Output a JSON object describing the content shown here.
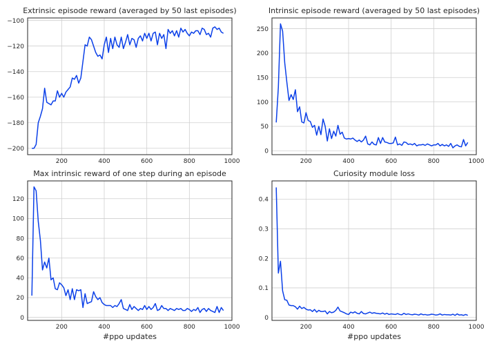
{
  "chart_data": [
    {
      "type": "line",
      "title": "Extrinsic episode reward (averaged by 50 last episodes)",
      "xlabel": "",
      "xlim": [
        40,
        1000
      ],
      "ylim": [
        -205,
        -98
      ],
      "xticks": [
        200,
        400,
        600,
        800,
        1000
      ],
      "yticks": [
        -200,
        -180,
        -160,
        -140,
        -120,
        -100
      ],
      "grid": true,
      "series": [
        {
          "x": [
            60,
            70,
            80,
            90,
            100,
            110,
            120,
            130,
            140,
            150,
            160,
            170,
            180,
            190,
            200,
            210,
            220,
            230,
            240,
            250,
            260,
            270,
            280,
            290,
            300,
            310,
            320,
            330,
            340,
            350,
            360,
            370,
            380,
            390,
            400,
            410,
            420,
            430,
            440,
            450,
            460,
            470,
            480,
            490,
            500,
            510,
            520,
            530,
            540,
            550,
            560,
            570,
            580,
            590,
            600,
            610,
            620,
            630,
            640,
            650,
            660,
            670,
            680,
            690,
            700,
            710,
            720,
            730,
            740,
            750,
            760,
            770,
            780,
            790,
            800,
            810,
            820,
            830,
            840,
            850,
            860,
            870,
            880,
            890,
            900,
            910,
            920,
            930,
            940,
            950,
            960
          ],
          "values": [
            -200,
            -200,
            -197,
            -180,
            -175,
            -169,
            -153,
            -164,
            -165,
            -166,
            -163,
            -163,
            -155,
            -160,
            -157,
            -160,
            -156,
            -154,
            -152,
            -145,
            -146,
            -143,
            -149,
            -145,
            -132,
            -119,
            -120,
            -113,
            -115,
            -120,
            -125,
            -128,
            -127,
            -130,
            -119,
            -113,
            -125,
            -114,
            -122,
            -113,
            -119,
            -121,
            -113,
            -122,
            -117,
            -111,
            -119,
            -114,
            -115,
            -121,
            -114,
            -112,
            -116,
            -110,
            -114,
            -110,
            -116,
            -110,
            -109,
            -119,
            -110,
            -114,
            -111,
            -122,
            -107,
            -110,
            -108,
            -112,
            -108,
            -113,
            -106,
            -109,
            -107,
            -110,
            -112,
            -109,
            -110,
            -108,
            -108,
            -111,
            -106,
            -107,
            -111,
            -110,
            -113,
            -106,
            -105,
            -107,
            -106,
            -109,
            -110
          ]
        }
      ]
    },
    {
      "type": "line",
      "title": "Intrinsic episode reward (averaged by 50 last episodes)",
      "xlabel": "",
      "xlim": [
        40,
        1000
      ],
      "ylim": [
        -8,
        272
      ],
      "xticks": [
        200,
        400,
        600,
        800,
        1000
      ],
      "yticks": [
        0,
        50,
        100,
        150,
        200,
        250
      ],
      "grid": true,
      "series": [
        {
          "x": [
            60,
            70,
            80,
            90,
            100,
            110,
            120,
            130,
            140,
            150,
            160,
            170,
            180,
            190,
            200,
            210,
            220,
            230,
            240,
            250,
            260,
            270,
            280,
            290,
            300,
            310,
            320,
            330,
            340,
            350,
            360,
            370,
            380,
            390,
            400,
            410,
            420,
            430,
            440,
            450,
            460,
            470,
            480,
            490,
            500,
            510,
            520,
            530,
            540,
            550,
            560,
            570,
            580,
            590,
            600,
            610,
            620,
            630,
            640,
            650,
            660,
            670,
            680,
            690,
            700,
            710,
            720,
            730,
            740,
            750,
            760,
            770,
            780,
            790,
            800,
            810,
            820,
            830,
            840,
            850,
            860,
            870,
            880,
            890,
            900,
            910,
            920,
            930,
            940,
            950,
            960
          ],
          "values": [
            58,
            130,
            260,
            245,
            180,
            140,
            103,
            115,
            105,
            125,
            80,
            90,
            59,
            57,
            78,
            62,
            60,
            48,
            52,
            32,
            50,
            33,
            65,
            50,
            20,
            45,
            25,
            40,
            30,
            52,
            34,
            38,
            26,
            24,
            25,
            24,
            26,
            22,
            19,
            22,
            18,
            22,
            30,
            14,
            12,
            18,
            13,
            12,
            27,
            15,
            27,
            18,
            17,
            15,
            15,
            16,
            28,
            12,
            14,
            11,
            18,
            17,
            13,
            14,
            12,
            15,
            10,
            12,
            12,
            13,
            11,
            14,
            12,
            10,
            12,
            12,
            15,
            10,
            13,
            10,
            12,
            9,
            15,
            6,
            10,
            12,
            9,
            8,
            23,
            10,
            17
          ]
        }
      ]
    },
    {
      "type": "line",
      "title": "Max intrinsic reward of one step during an episode",
      "xlabel": "#ppo updates",
      "xlim": [
        40,
        1000
      ],
      "ylim": [
        -3,
        138
      ],
      "xticks": [
        200,
        400,
        600,
        800,
        1000
      ],
      "yticks": [
        0,
        20,
        40,
        60,
        80,
        100,
        120
      ],
      "grid": true,
      "series": [
        {
          "x": [
            60,
            70,
            80,
            90,
            100,
            110,
            120,
            130,
            140,
            150,
            160,
            170,
            180,
            190,
            200,
            210,
            220,
            230,
            240,
            250,
            260,
            270,
            280,
            290,
            300,
            310,
            320,
            330,
            340,
            350,
            360,
            370,
            380,
            390,
            400,
            410,
            420,
            430,
            440,
            450,
            460,
            470,
            480,
            490,
            500,
            510,
            520,
            530,
            540,
            550,
            560,
            570,
            580,
            590,
            600,
            610,
            620,
            630,
            640,
            650,
            660,
            670,
            680,
            690,
            700,
            710,
            720,
            730,
            740,
            750,
            760,
            770,
            780,
            790,
            800,
            810,
            820,
            830,
            840,
            850,
            860,
            870,
            880,
            890,
            900,
            910,
            920,
            930,
            940,
            950,
            960
          ],
          "values": [
            22,
            132,
            128,
            97,
            78,
            48,
            56,
            50,
            60,
            38,
            40,
            29,
            28,
            35,
            33,
            30,
            22,
            28,
            18,
            29,
            18,
            28,
            27,
            28,
            10,
            24,
            14,
            15,
            16,
            26,
            21,
            18,
            20,
            15,
            13,
            12,
            12,
            12,
            10,
            12,
            11,
            14,
            18,
            9,
            8,
            7,
            13,
            8,
            11,
            9,
            7,
            9,
            8,
            12,
            8,
            11,
            8,
            10,
            14,
            7,
            8,
            12,
            9,
            9,
            7,
            9,
            8,
            7,
            9,
            8,
            9,
            7,
            7,
            9,
            8,
            6,
            8,
            7,
            10,
            5,
            8,
            9,
            6,
            9,
            7,
            6,
            5,
            11,
            5,
            10,
            7
          ]
        }
      ]
    },
    {
      "type": "line",
      "title": "Curiosity module loss",
      "xlabel": "#ppo updates",
      "xlim": [
        40,
        1000
      ],
      "ylim": [
        -0.01,
        0.462
      ],
      "xticks": [
        200,
        400,
        600,
        800,
        1000
      ],
      "yticks": [
        0.0,
        0.1,
        0.2,
        0.3,
        0.4
      ],
      "grid": true,
      "series": [
        {
          "x": [
            60,
            70,
            80,
            90,
            100,
            110,
            120,
            130,
            140,
            150,
            160,
            170,
            180,
            190,
            200,
            210,
            220,
            230,
            240,
            250,
            260,
            270,
            280,
            290,
            300,
            310,
            320,
            330,
            340,
            350,
            360,
            370,
            380,
            390,
            400,
            410,
            420,
            430,
            440,
            450,
            460,
            470,
            480,
            490,
            500,
            510,
            520,
            530,
            540,
            550,
            560,
            570,
            580,
            590,
            600,
            610,
            620,
            630,
            640,
            650,
            660,
            670,
            680,
            690,
            700,
            710,
            720,
            730,
            740,
            750,
            760,
            770,
            780,
            790,
            800,
            810,
            820,
            830,
            840,
            850,
            860,
            870,
            880,
            890,
            900,
            910,
            920,
            930,
            940,
            950,
            960
          ],
          "values": [
            0.44,
            0.15,
            0.19,
            0.09,
            0.06,
            0.058,
            0.042,
            0.04,
            0.04,
            0.036,
            0.028,
            0.038,
            0.03,
            0.034,
            0.028,
            0.025,
            0.026,
            0.02,
            0.027,
            0.018,
            0.024,
            0.02,
            0.02,
            0.022,
            0.012,
            0.02,
            0.016,
            0.018,
            0.024,
            0.035,
            0.022,
            0.019,
            0.016,
            0.012,
            0.01,
            0.018,
            0.015,
            0.019,
            0.014,
            0.012,
            0.02,
            0.013,
            0.012,
            0.015,
            0.018,
            0.014,
            0.016,
            0.014,
            0.013,
            0.012,
            0.015,
            0.011,
            0.014,
            0.01,
            0.012,
            0.011,
            0.01,
            0.013,
            0.01,
            0.009,
            0.014,
            0.01,
            0.012,
            0.01,
            0.009,
            0.011,
            0.01,
            0.008,
            0.012,
            0.009,
            0.01,
            0.008,
            0.009,
            0.011,
            0.01,
            0.008,
            0.009,
            0.012,
            0.008,
            0.01,
            0.009,
            0.009,
            0.008,
            0.011,
            0.007,
            0.012,
            0.008,
            0.009,
            0.007,
            0.01,
            0.007
          ]
        }
      ]
    }
  ]
}
